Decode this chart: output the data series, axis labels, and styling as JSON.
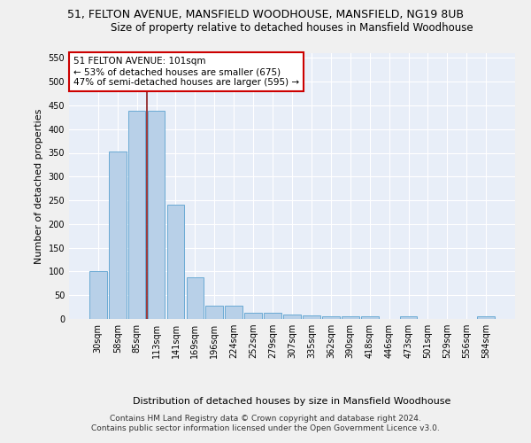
{
  "title_line1": "51, FELTON AVENUE, MANSFIELD WOODHOUSE, MANSFIELD, NG19 8UB",
  "title_line2": "Size of property relative to detached houses in Mansfield Woodhouse",
  "xlabel": "Distribution of detached houses by size in Mansfield Woodhouse",
  "ylabel": "Number of detached properties",
  "footnote": "Contains HM Land Registry data © Crown copyright and database right 2024.\nContains public sector information licensed under the Open Government Licence v3.0.",
  "bar_labels": [
    "30sqm",
    "58sqm",
    "85sqm",
    "113sqm",
    "141sqm",
    "169sqm",
    "196sqm",
    "224sqm",
    "252sqm",
    "279sqm",
    "307sqm",
    "335sqm",
    "362sqm",
    "390sqm",
    "418sqm",
    "446sqm",
    "473sqm",
    "501sqm",
    "529sqm",
    "556sqm",
    "584sqm"
  ],
  "bar_heights": [
    100,
    352,
    438,
    438,
    240,
    87,
    28,
    28,
    14,
    14,
    10,
    8,
    5,
    5,
    5,
    0,
    5,
    0,
    0,
    0,
    5
  ],
  "bar_color": "#b8d0e8",
  "bar_edge_color": "#6aaad4",
  "annotation_text": "51 FELTON AVENUE: 101sqm\n← 53% of detached houses are smaller (675)\n47% of semi-detached houses are larger (595) →",
  "vline_position": 2.5,
  "vline_color": "#8b1a1a",
  "annotation_box_color": "#ffffff",
  "annotation_box_edge": "#cc0000",
  "ylim": [
    0,
    560
  ],
  "yticks": [
    0,
    50,
    100,
    150,
    200,
    250,
    300,
    350,
    400,
    450,
    500,
    550
  ],
  "background_color": "#e8eef8",
  "grid_color": "#ffffff",
  "fig_bg_color": "#f0f0f0",
  "title_fontsize": 9,
  "subtitle_fontsize": 8.5,
  "axis_label_fontsize": 8,
  "tick_fontsize": 7,
  "annotation_fontsize": 7.5,
  "footnote_fontsize": 6.5
}
